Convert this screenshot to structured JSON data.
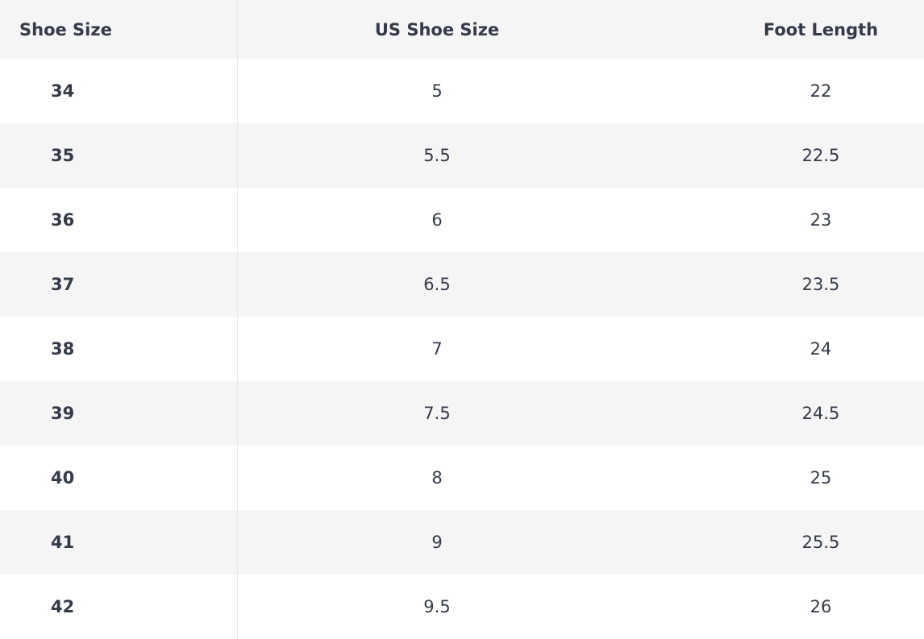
{
  "headers": [
    "Shoe Size",
    "US Shoe Size",
    "Foot Length"
  ],
  "rows": [
    [
      "34",
      "5",
      "22"
    ],
    [
      "35",
      "5.5",
      "22.5"
    ],
    [
      "36",
      "6",
      "23"
    ],
    [
      "37",
      "6.5",
      "23.5"
    ],
    [
      "38",
      "7",
      "24"
    ],
    [
      "39",
      "7.5",
      "24.5"
    ],
    [
      "40",
      "8",
      "25"
    ],
    [
      "41",
      "9",
      "25.5"
    ],
    [
      "42",
      "9.5",
      "26"
    ]
  ]
}
